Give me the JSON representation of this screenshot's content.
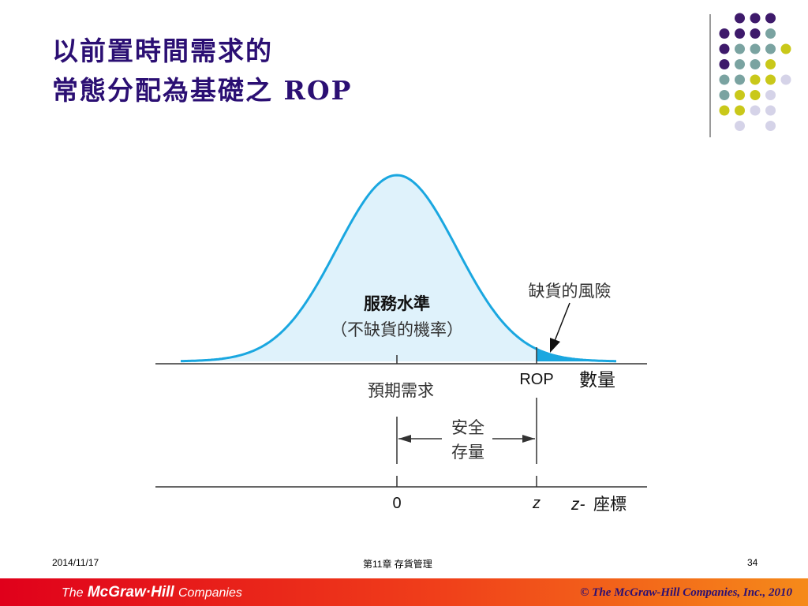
{
  "title": {
    "line1": "以前置時間需求的",
    "line2": "常態分配為基礎之 ROP"
  },
  "diagram": {
    "service_level_label": "服務水準",
    "service_level_sub": "（不缺貨的機率）",
    "stockout_risk_label": "缺貨的風險",
    "expected_demand_label": "預期需求",
    "rop_label": "ROP",
    "quantity_label": "數量",
    "safety_stock_line1": "安全",
    "safety_stock_line2": "存量",
    "z_zero_label": "0",
    "z_label": "z",
    "z_axis_italic": "z-",
    "z_axis_label": "座標",
    "colors": {
      "curve": "#1aa7e0",
      "fill_light": "#dff2fb",
      "fill_tail": "#1aa7e0"
    }
  },
  "footer": {
    "date": "2014/11/17",
    "chapter": "第11章 存貨管理",
    "page": "34",
    "brand_the": "The",
    "brand_name": "McGraw·Hill",
    "brand_companies": "Companies",
    "copyright": "© The McGraw-Hill Companies, Inc., 2010"
  },
  "colors": {
    "title": "#2b0f73",
    "dot_purple": "#3e1a6b",
    "dot_teal": "#7aa3a1",
    "dot_yellow": "#c9c81a",
    "dot_lavender": "#d5d3e8"
  }
}
